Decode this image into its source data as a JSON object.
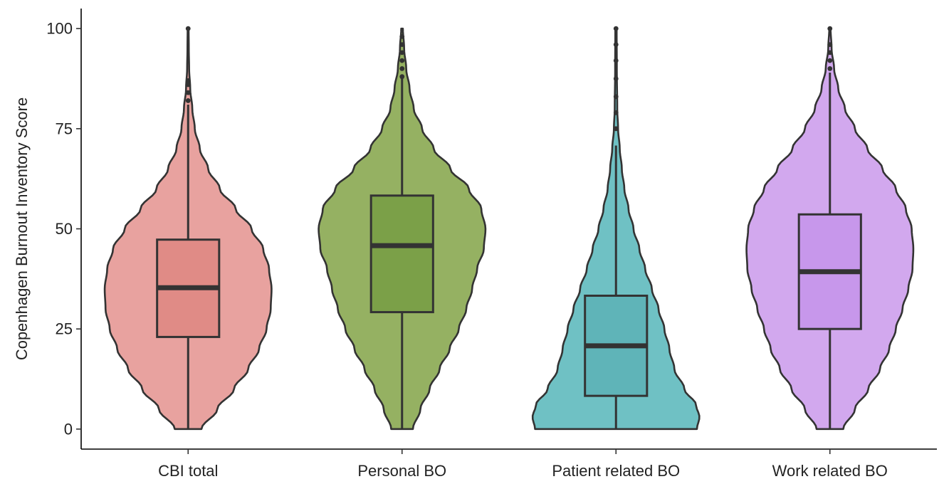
{
  "chart_data": {
    "type": "violin",
    "title": "",
    "xlabel": "",
    "ylabel": "Copenhagen Burnout Inventory Score",
    "ylim": [
      -5,
      105
    ],
    "yticks": [
      0,
      25,
      50,
      75,
      100
    ],
    "grid": false,
    "legend": "none",
    "categories": [
      "CBI total",
      "Personal BO",
      "Patient related BO",
      "Work related BO"
    ],
    "series": [
      {
        "category": "CBI total",
        "color": "#E8A29F",
        "box_color": "#E08B86",
        "min": 0,
        "q1": 23,
        "median": 35.3,
        "q3": 47.3,
        "max": 81,
        "outliers": [
          82,
          84,
          86,
          87,
          100
        ],
        "density": [
          [
            0,
            0.16
          ],
          [
            5,
            0.35
          ],
          [
            10,
            0.55
          ],
          [
            15,
            0.72
          ],
          [
            20,
            0.85
          ],
          [
            25,
            0.94
          ],
          [
            30,
            0.99
          ],
          [
            35,
            1.0
          ],
          [
            40,
            0.97
          ],
          [
            45,
            0.9
          ],
          [
            50,
            0.76
          ],
          [
            55,
            0.57
          ],
          [
            60,
            0.38
          ],
          [
            65,
            0.24
          ],
          [
            70,
            0.14
          ],
          [
            75,
            0.08
          ],
          [
            80,
            0.05
          ],
          [
            85,
            0.025
          ],
          [
            90,
            0.012
          ],
          [
            95,
            0.008
          ],
          [
            100,
            0.006
          ]
        ]
      },
      {
        "category": "Personal BO",
        "color": "#95B162",
        "box_color": "#7BA048",
        "min": 0,
        "q1": 29.2,
        "median": 45.8,
        "q3": 58.3,
        "max": 87.5,
        "outliers": [
          88,
          90,
          92,
          94,
          96,
          98
        ],
        "density": [
          [
            0,
            0.13
          ],
          [
            5,
            0.22
          ],
          [
            10,
            0.33
          ],
          [
            15,
            0.45
          ],
          [
            20,
            0.57
          ],
          [
            25,
            0.68
          ],
          [
            30,
            0.77
          ],
          [
            35,
            0.84
          ],
          [
            40,
            0.9
          ],
          [
            45,
            0.98
          ],
          [
            50,
            1.0
          ],
          [
            55,
            0.95
          ],
          [
            60,
            0.8
          ],
          [
            65,
            0.58
          ],
          [
            70,
            0.38
          ],
          [
            75,
            0.24
          ],
          [
            80,
            0.14
          ],
          [
            85,
            0.09
          ],
          [
            90,
            0.05
          ],
          [
            95,
            0.025
          ],
          [
            100,
            0.01
          ]
        ]
      },
      {
        "category": "Patient related BO",
        "color": "#6FC1C4",
        "box_color": "#5FB4B8",
        "min": 0,
        "q1": 8.3,
        "median": 20.8,
        "q3": 33.3,
        "max": 70.8,
        "outliers": [
          75,
          79,
          83,
          87.5,
          92,
          96,
          100
        ],
        "density": [
          [
            0,
            0.97
          ],
          [
            3,
            1.0
          ],
          [
            6,
            0.96
          ],
          [
            10,
            0.82
          ],
          [
            15,
            0.7
          ],
          [
            20,
            0.64
          ],
          [
            25,
            0.58
          ],
          [
            30,
            0.51
          ],
          [
            35,
            0.43
          ],
          [
            40,
            0.35
          ],
          [
            45,
            0.28
          ],
          [
            50,
            0.21
          ],
          [
            55,
            0.15
          ],
          [
            60,
            0.1
          ],
          [
            65,
            0.07
          ],
          [
            70,
            0.045
          ],
          [
            75,
            0.025
          ],
          [
            80,
            0.015
          ],
          [
            90,
            0.01
          ],
          [
            100,
            0.008
          ]
        ]
      },
      {
        "category": "Work related BO",
        "color": "#D2A8EE",
        "box_color": "#C797EB",
        "min": 0,
        "q1": 25,
        "median": 39.3,
        "q3": 53.6,
        "max": 89,
        "outliers": [
          90,
          92,
          94,
          96,
          100
        ],
        "density": [
          [
            0,
            0.16
          ],
          [
            5,
            0.3
          ],
          [
            10,
            0.46
          ],
          [
            15,
            0.6
          ],
          [
            20,
            0.71
          ],
          [
            25,
            0.79
          ],
          [
            30,
            0.87
          ],
          [
            35,
            0.94
          ],
          [
            40,
            0.99
          ],
          [
            45,
            1.0
          ],
          [
            50,
            0.98
          ],
          [
            55,
            0.91
          ],
          [
            60,
            0.79
          ],
          [
            65,
            0.63
          ],
          [
            70,
            0.45
          ],
          [
            75,
            0.3
          ],
          [
            80,
            0.18
          ],
          [
            85,
            0.1
          ],
          [
            90,
            0.05
          ],
          [
            95,
            0.02
          ],
          [
            100,
            0.008
          ]
        ]
      }
    ]
  }
}
